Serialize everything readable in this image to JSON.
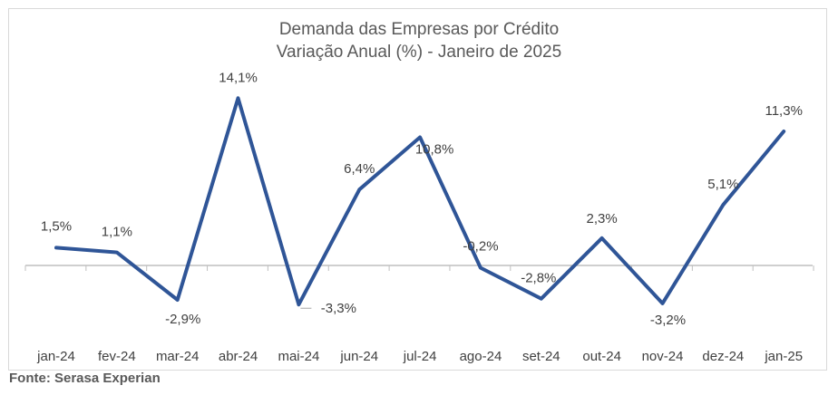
{
  "chart_data": {
    "type": "line",
    "title": "Demanda das Empresas por Crédito",
    "subtitle": "Variação Anual (%) - Janeiro de 2025",
    "categories": [
      "jan-24",
      "fev-24",
      "mar-24",
      "abr-24",
      "mai-24",
      "jun-24",
      "jul-24",
      "ago-24",
      "set-24",
      "out-24",
      "nov-24",
      "dez-24",
      "jan-25"
    ],
    "series": [
      {
        "values": [
          1.5,
          1.1,
          -2.9,
          14.1,
          -3.3,
          6.4,
          10.8,
          -0.2,
          -2.8,
          2.3,
          -3.2,
          5.1,
          11.3
        ],
        "labels": [
          "1,5%",
          "1,1%",
          "-2,9%",
          "14,1%",
          "-3,3%",
          "6,4%",
          "10,8%",
          "-0,2%",
          "-2,8%",
          "2,3%",
          "-3,2%",
          "5,1%",
          "11,3%"
        ],
        "color": "#2f5597"
      }
    ],
    "ylim": [
      -5,
      16
    ],
    "grid": false,
    "legend": "none"
  },
  "source": "Fonte: Serasa Experian",
  "colors": {
    "line": "#2f5597",
    "axis": "#bfbfbf",
    "text": "#404040"
  }
}
